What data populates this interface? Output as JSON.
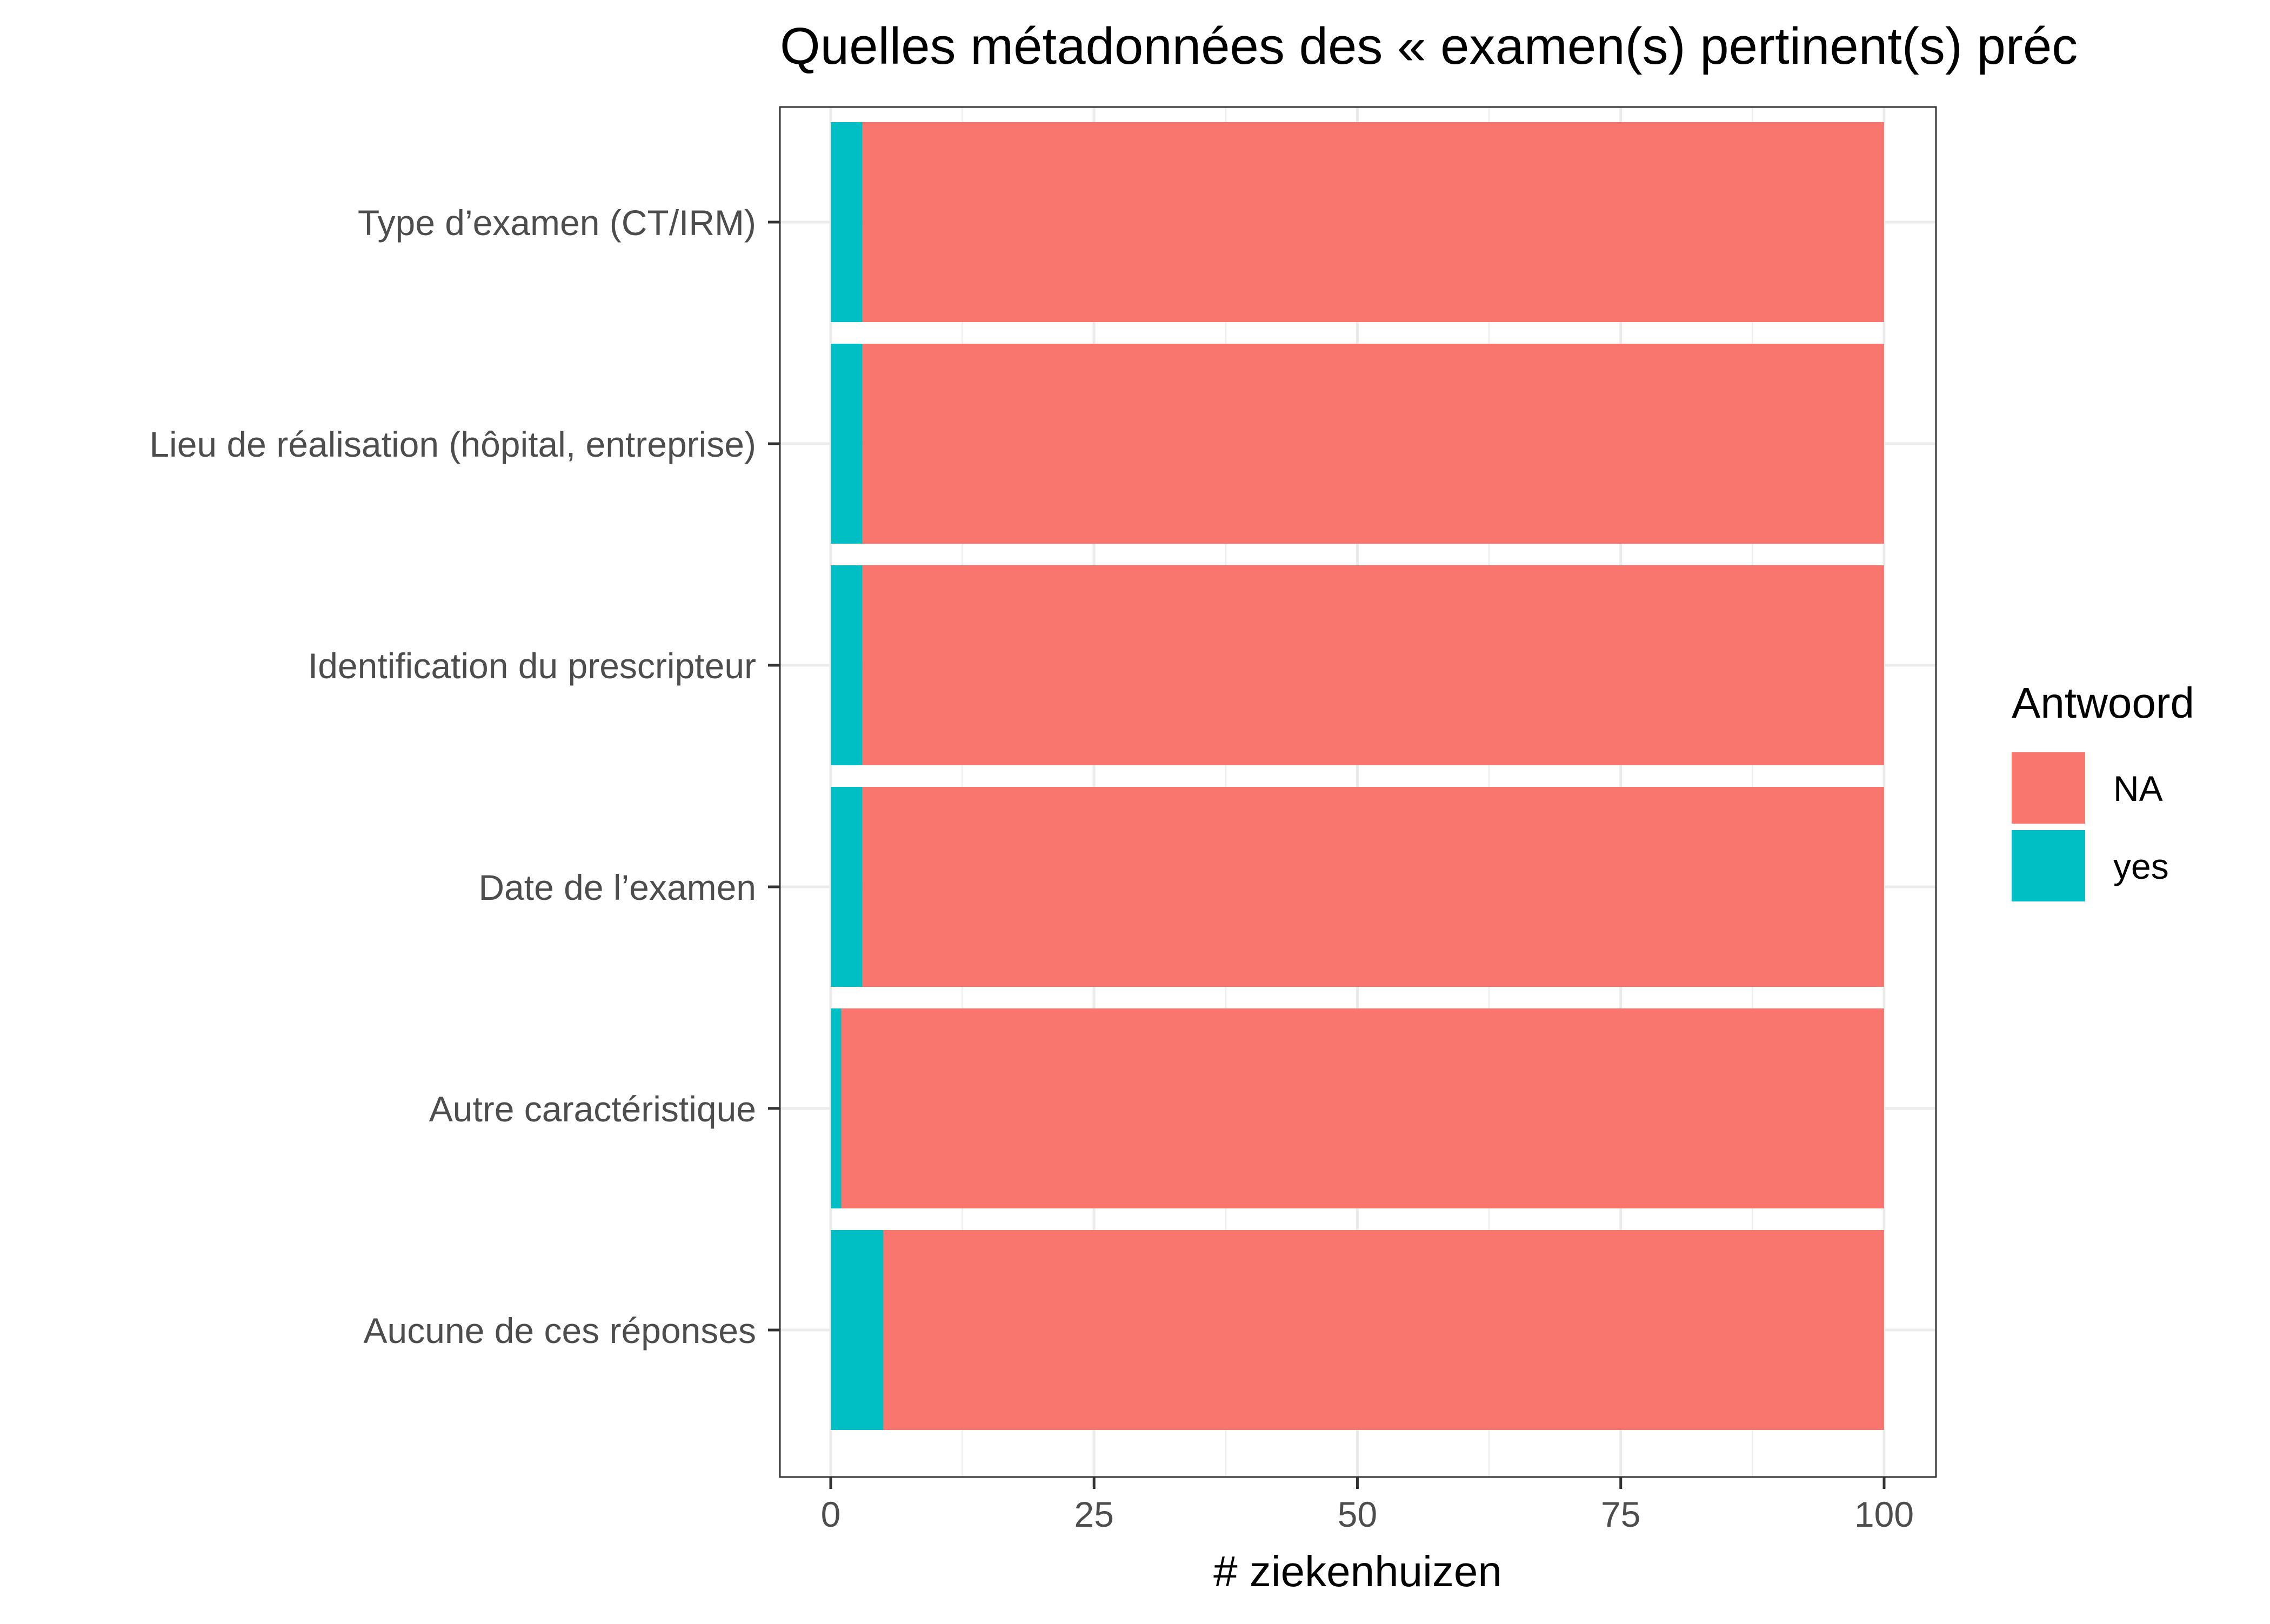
{
  "chart_data": {
    "type": "bar",
    "orientation": "horizontal",
    "stacked": true,
    "title": "Quelles métadonnées des « examen(s) pertinent(s) préc",
    "xlabel": "# ziekenhuizen",
    "ylabel": "",
    "xlim": [
      0,
      100
    ],
    "x_ticks": [
      0,
      25,
      50,
      75,
      100
    ],
    "grid": true,
    "categories": [
      "Type d’examen (CT/IRM)",
      "Lieu de réalisation (hôpital, entreprise)",
      "Identification du prescripteur",
      "Date de l’examen",
      "Autre caractéristique",
      "Aucune de ces réponses"
    ],
    "series": [
      {
        "name": "yes",
        "color": "#00BFC4",
        "values": [
          3,
          3,
          3,
          3,
          1,
          5
        ]
      },
      {
        "name": "NA",
        "color": "#F8766D",
        "values": [
          97,
          97,
          97,
          97,
          99,
          95
        ]
      }
    ],
    "legend": {
      "title": "Antwoord",
      "position": "right",
      "entries": [
        {
          "label": "NA",
          "color": "#F8766D"
        },
        {
          "label": "yes",
          "color": "#00BFC4"
        }
      ]
    }
  }
}
